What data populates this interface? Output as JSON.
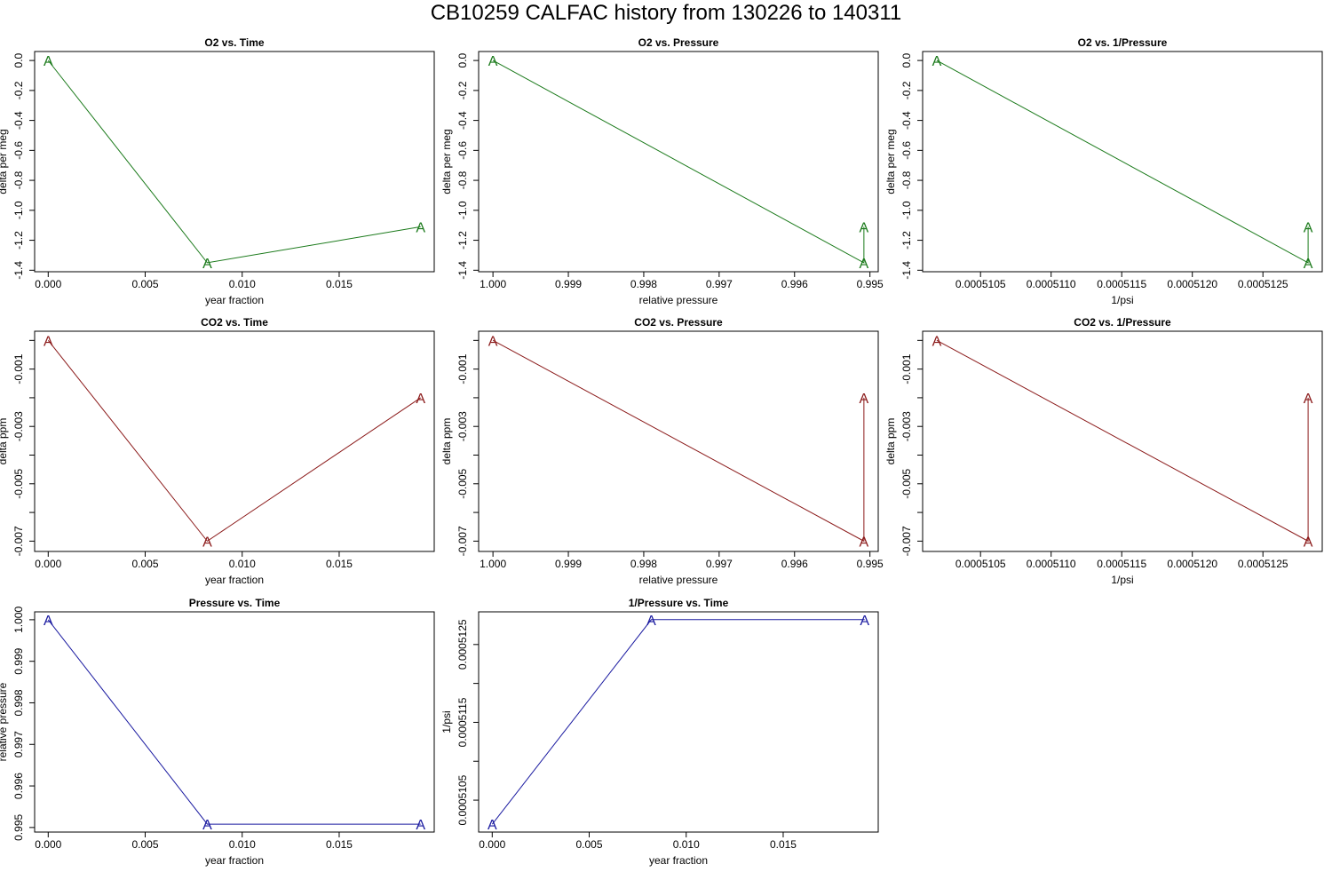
{
  "title": "CB10259   CALFAC history from  130226  to  140311",
  "chart_data": [
    {
      "type": "line",
      "title": "O2 vs. Time",
      "xlabel": "year fraction",
      "ylabel": "delta per meg",
      "color": "#1b7a1b",
      "marker": "A",
      "x": [
        0.0,
        0.0082,
        0.0192
      ],
      "y": [
        0.0,
        -1.35,
        -1.11
      ],
      "xlim": [
        -0.0007,
        0.0199
      ],
      "ylim": [
        -1.41,
        0.06
      ],
      "xticks": [
        0.0,
        0.005,
        0.01,
        0.015
      ],
      "xticklabels": [
        "0.000",
        "0.005",
        "0.010",
        "0.015"
      ],
      "yticks": [
        0.0,
        -0.2,
        -0.4,
        -0.6,
        -0.8,
        -1.0,
        -1.2,
        -1.4
      ],
      "yticklabels": [
        "0.0",
        "-0.2",
        "-0.4",
        "-0.6",
        "-0.8",
        "-1.0",
        "-1.2",
        "-1.4"
      ]
    },
    {
      "type": "line",
      "title": "O2 vs. Pressure",
      "xlabel": "relative pressure",
      "ylabel": "delta per meg",
      "color": "#1b7a1b",
      "marker": "A",
      "x": [
        1.0,
        0.99508,
        0.99508
      ],
      "y": [
        0.0,
        -1.35,
        -1.11
      ],
      "xlim": [
        1.00019,
        0.99489
      ],
      "ylim": [
        -1.41,
        0.06
      ],
      "xticks": [
        1.0,
        0.999,
        0.998,
        0.997,
        0.996,
        0.995
      ],
      "xticklabels": [
        "1.000",
        "0.999",
        "0.998",
        "0.997",
        "0.996",
        "0.995"
      ],
      "yticks": [
        0.0,
        -0.2,
        -0.4,
        -0.6,
        -0.8,
        -1.0,
        -1.2,
        -1.4
      ],
      "yticklabels": [
        "0.0",
        "-0.2",
        "-0.4",
        "-0.6",
        "-0.8",
        "-1.0",
        "-1.2",
        "-1.4"
      ]
    },
    {
      "type": "line",
      "title": "O2 vs. 1/Pressure",
      "xlabel": "1/psi",
      "ylabel": "delta per meg",
      "color": "#1b7a1b",
      "marker": "A",
      "x": [
        0.00051019,
        0.00051282,
        0.00051282
      ],
      "y": [
        0.0,
        -1.35,
        -1.11
      ],
      "xlim": [
        0.00051009,
        0.00051292
      ],
      "ylim": [
        -1.41,
        0.06
      ],
      "xticks": [
        0.0005105,
        0.000511,
        0.0005115,
        0.000512,
        0.0005125
      ],
      "xticklabels": [
        "0.0005105",
        "0.0005110",
        "0.0005115",
        "0.0005120",
        "0.0005125"
      ],
      "yticks": [
        0.0,
        -0.2,
        -0.4,
        -0.6,
        -0.8,
        -1.0,
        -1.2,
        -1.4
      ],
      "yticklabels": [
        "0.0",
        "-0.2",
        "-0.4",
        "-0.6",
        "-0.8",
        "-1.0",
        "-1.2",
        "-1.4"
      ]
    },
    {
      "type": "line",
      "title": "CO2 vs. Time",
      "xlabel": "year fraction",
      "ylabel": "delta ppm",
      "color": "#8b1a1a",
      "marker": "A",
      "x": [
        0.0,
        0.0082,
        0.0192
      ],
      "y": [
        0.0,
        -0.007,
        -0.002
      ],
      "xlim": [
        -0.0007,
        0.0199
      ],
      "ylim": [
        -0.00736,
        0.00032
      ],
      "xticks": [
        0.0,
        0.005,
        0.01,
        0.015
      ],
      "xticklabels": [
        "0.000",
        "0.005",
        "0.010",
        "0.015"
      ],
      "yticks": [
        -0.001,
        -0.003,
        -0.005,
        -0.007
      ],
      "yticklabels": [
        "-0.001",
        "-0.003",
        "-0.005",
        "-0.007"
      ],
      "yminorticks": [
        0.0,
        -0.002,
        -0.004,
        -0.006
      ]
    },
    {
      "type": "line",
      "title": "CO2 vs. Pressure",
      "xlabel": "relative pressure",
      "ylabel": "delta ppm",
      "color": "#8b1a1a",
      "marker": "A",
      "x": [
        1.0,
        0.99508,
        0.99508
      ],
      "y": [
        0.0,
        -0.007,
        -0.002
      ],
      "xlim": [
        1.00019,
        0.99489
      ],
      "ylim": [
        -0.00736,
        0.00032
      ],
      "xticks": [
        1.0,
        0.999,
        0.998,
        0.997,
        0.996,
        0.995
      ],
      "xticklabels": [
        "1.000",
        "0.999",
        "0.998",
        "0.997",
        "0.996",
        "0.995"
      ],
      "yticks": [
        -0.001,
        -0.003,
        -0.005,
        -0.007
      ],
      "yticklabels": [
        "-0.001",
        "-0.003",
        "-0.005",
        "-0.007"
      ],
      "yminorticks": [
        0.0,
        -0.002,
        -0.004,
        -0.006
      ]
    },
    {
      "type": "line",
      "title": "CO2 vs. 1/Pressure",
      "xlabel": "1/psi",
      "ylabel": "delta ppm",
      "color": "#8b1a1a",
      "marker": "A",
      "x": [
        0.00051019,
        0.00051282,
        0.00051282
      ],
      "y": [
        0.0,
        -0.007,
        -0.002
      ],
      "xlim": [
        0.00051009,
        0.00051292
      ],
      "ylim": [
        -0.00736,
        0.00032
      ],
      "xticks": [
        0.0005105,
        0.000511,
        0.0005115,
        0.000512,
        0.0005125
      ],
      "xticklabels": [
        "0.0005105",
        "0.0005110",
        "0.0005115",
        "0.0005120",
        "0.0005125"
      ],
      "yticks": [
        -0.001,
        -0.003,
        -0.005,
        -0.007
      ],
      "yticklabels": [
        "-0.001",
        "-0.003",
        "-0.005",
        "-0.007"
      ],
      "yminorticks": [
        0.0,
        -0.002,
        -0.004,
        -0.006
      ]
    },
    {
      "type": "line",
      "title": "Pressure vs. Time",
      "xlabel": "year fraction",
      "ylabel": "relative pressure",
      "color": "#1a1aa0",
      "marker": "A",
      "x": [
        0.0,
        0.0082,
        0.0192
      ],
      "y": [
        1.0,
        0.99508,
        0.99508
      ],
      "xlim": [
        -0.0007,
        0.0199
      ],
      "ylim": [
        0.99489,
        1.00019
      ],
      "xticks": [
        0.0,
        0.005,
        0.01,
        0.015
      ],
      "xticklabels": [
        "0.000",
        "0.005",
        "0.010",
        "0.015"
      ],
      "yticks": [
        1.0,
        0.999,
        0.998,
        0.997,
        0.996,
        0.995
      ],
      "yticklabels": [
        "1.000",
        "0.999",
        "0.998",
        "0.997",
        "0.996",
        "0.995"
      ]
    },
    {
      "type": "line",
      "title": "1/Pressure vs. Time",
      "xlabel": "year fraction",
      "ylabel": "1/psi",
      "color": "#1a1aa0",
      "marker": "A",
      "x": [
        0.0,
        0.0082,
        0.0192
      ],
      "y": [
        0.00051019,
        0.00051282,
        0.00051282
      ],
      "xlim": [
        -0.0007,
        0.0199
      ],
      "ylim": [
        0.00051009,
        0.00051292
      ],
      "xticks": [
        0.0,
        0.005,
        0.01,
        0.015
      ],
      "xticklabels": [
        "0.000",
        "0.005",
        "0.010",
        "0.015"
      ],
      "yticks": [
        0.0005105,
        0.0005115,
        0.0005125
      ],
      "yticklabels": [
        "0.0005105",
        "0.0005115",
        "0.0005125"
      ],
      "yminorticks": [
        0.000511,
        0.000512
      ]
    }
  ]
}
